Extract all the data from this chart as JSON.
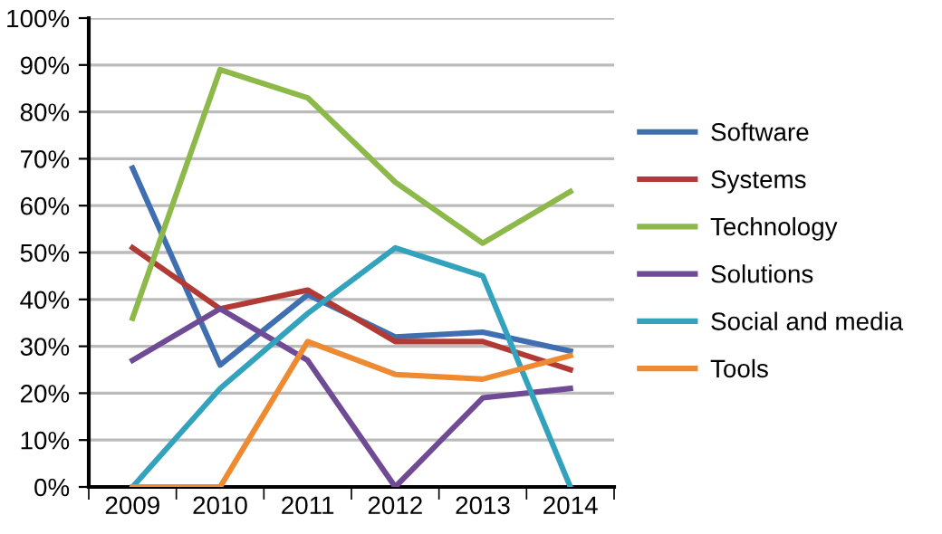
{
  "chart_data": {
    "type": "line",
    "categories": [
      "2009",
      "2010",
      "2011",
      "2012",
      "2013",
      "2014"
    ],
    "series": [
      {
        "name": "Software",
        "color": "#3f6fb0",
        "values": [
          68,
          26,
          41,
          32,
          33,
          29
        ]
      },
      {
        "name": "Systems",
        "color": "#b23a35",
        "values": [
          51,
          38,
          42,
          31,
          31,
          25
        ]
      },
      {
        "name": "Technology",
        "color": "#8db84a",
        "values": [
          36,
          89,
          83,
          65,
          52,
          63
        ]
      },
      {
        "name": "Solutions",
        "color": "#6f4a95",
        "values": [
          27,
          38,
          27,
          0,
          19,
          21
        ]
      },
      {
        "name": "Social and media",
        "color": "#33a3bd",
        "values": [
          0,
          21,
          37,
          51,
          45,
          0
        ]
      },
      {
        "name": "Tools",
        "color": "#ee8a32",
        "values": [
          0,
          0,
          31,
          24,
          23,
          28
        ]
      }
    ],
    "ylim": [
      0,
      100
    ],
    "yticks": [
      {
        "value": 0,
        "label": "0%"
      },
      {
        "value": 10,
        "label": "10%"
      },
      {
        "value": 20,
        "label": "20%"
      },
      {
        "value": 30,
        "label": "30%"
      },
      {
        "value": 40,
        "label": "40%"
      },
      {
        "value": 50,
        "label": "50%"
      },
      {
        "value": 60,
        "label": "60%"
      },
      {
        "value": 70,
        "label": "70%"
      },
      {
        "value": 80,
        "label": "80%"
      },
      {
        "value": 90,
        "label": "90%"
      },
      {
        "value": 100,
        "label": "100%"
      }
    ],
    "grid": "y",
    "legend": "right",
    "marker": "none",
    "line_style": "solid"
  }
}
